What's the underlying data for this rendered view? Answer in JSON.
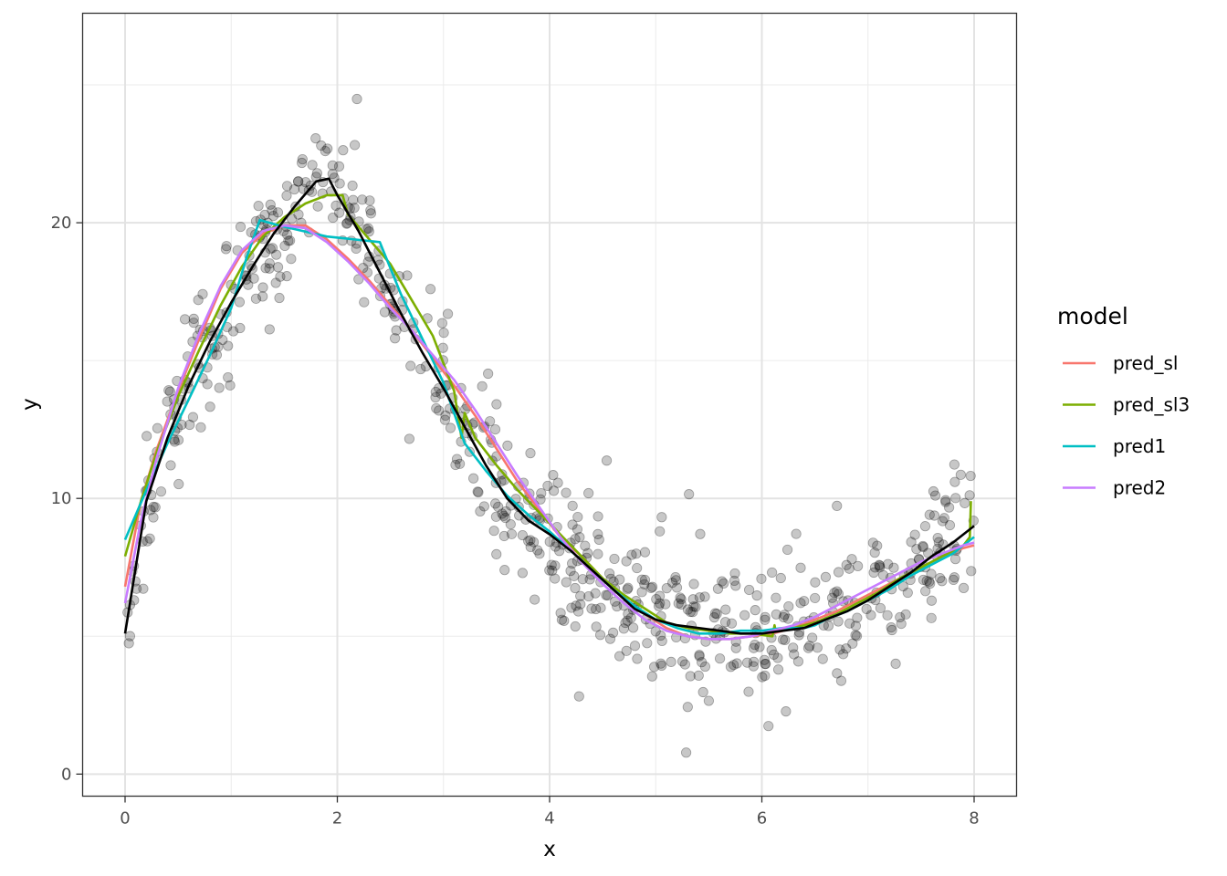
{
  "chart_data": {
    "type": "scatter",
    "title": "",
    "xlabel": "x",
    "ylabel": "y",
    "xlim": [
      -0.4,
      8.4
    ],
    "ylim": [
      -0.8,
      27.6
    ],
    "x_ticks": [
      0,
      2,
      4,
      6,
      8
    ],
    "y_ticks": [
      0,
      10,
      20
    ],
    "x_tick_labels": [
      "0",
      "2",
      "4",
      "6",
      "8"
    ],
    "y_tick_labels": [
      "0",
      "10",
      "20"
    ],
    "grid": true,
    "legend": {
      "title": "model",
      "position": "right"
    },
    "truth_line_color": "#000000",
    "truth_line": {
      "x": [
        0.0,
        0.2,
        0.4,
        0.6,
        0.8,
        1.0,
        1.2,
        1.4,
        1.6,
        1.8,
        1.92,
        2.0,
        2.2,
        2.4,
        2.6,
        2.8,
        3.0,
        3.2,
        3.4,
        3.6,
        3.8,
        4.0,
        4.2,
        4.4,
        4.6,
        4.8,
        5.0,
        5.2,
        5.4,
        5.6,
        5.8,
        6.0,
        6.2,
        6.4,
        6.6,
        6.8,
        7.0,
        7.2,
        7.4,
        7.6,
        7.8,
        8.0
      ],
      "y": [
        5.1,
        9.9,
        12.2,
        14.1,
        15.7,
        17.1,
        18.4,
        19.6,
        20.6,
        21.5,
        21.6,
        21.0,
        19.7,
        18.2,
        16.7,
        15.3,
        14.0,
        12.6,
        11.2,
        10.0,
        9.2,
        8.7,
        8.1,
        7.4,
        6.7,
        6.0,
        5.6,
        5.4,
        5.3,
        5.2,
        5.1,
        5.1,
        5.2,
        5.3,
        5.6,
        5.9,
        6.3,
        6.8,
        7.3,
        7.9,
        8.4,
        9.0
      ]
    },
    "series": [
      {
        "name": "pred_sl",
        "color": "#F8766D",
        "x": [
          0.0,
          0.15,
          0.3,
          0.5,
          0.7,
          0.9,
          1.1,
          1.3,
          1.5,
          1.7,
          1.9,
          2.1,
          2.3,
          2.5,
          2.7,
          2.9,
          3.1,
          3.3,
          3.5,
          3.7,
          3.9,
          4.1,
          4.3,
          4.5,
          4.7,
          4.9,
          5.1,
          5.3,
          5.5,
          5.7,
          5.9,
          6.1,
          6.3,
          6.5,
          6.7,
          6.9,
          7.1,
          7.3,
          7.5,
          7.7,
          7.9,
          8.0
        ],
        "y": [
          6.8,
          9.9,
          11.8,
          13.9,
          15.8,
          17.6,
          18.9,
          19.6,
          19.9,
          19.9,
          19.4,
          18.7,
          17.9,
          17.0,
          16.1,
          15.1,
          14.1,
          13.0,
          11.8,
          10.6,
          9.6,
          8.6,
          7.9,
          7.1,
          6.4,
          5.8,
          5.3,
          5.0,
          4.9,
          4.9,
          5.0,
          5.1,
          5.3,
          5.6,
          5.9,
          6.3,
          6.7,
          7.1,
          7.5,
          7.9,
          8.2,
          8.3
        ]
      },
      {
        "name": "pred_sl3",
        "color": "#7CAE00",
        "x": [
          0.0,
          0.15,
          0.3,
          0.5,
          0.7,
          0.9,
          1.1,
          1.3,
          1.5,
          1.7,
          1.9,
          2.05,
          2.1,
          2.3,
          2.5,
          2.7,
          2.9,
          3.1,
          3.17,
          3.2,
          3.3,
          3.5,
          3.7,
          3.9,
          4.1,
          4.3,
          4.5,
          4.7,
          4.9,
          5.1,
          5.3,
          5.5,
          5.7,
          5.9,
          6.1,
          6.12,
          6.13,
          6.3,
          6.5,
          6.7,
          6.9,
          7.1,
          7.3,
          7.5,
          7.7,
          7.9,
          7.96,
          7.97
        ],
        "y": [
          7.9,
          9.9,
          11.7,
          13.7,
          15.4,
          17.0,
          18.4,
          19.5,
          20.2,
          20.7,
          21.0,
          21.0,
          20.3,
          19.4,
          18.5,
          17.2,
          15.9,
          13.9,
          12.2,
          13.1,
          12.2,
          11.2,
          10.3,
          9.5,
          8.7,
          7.9,
          7.1,
          6.5,
          6.0,
          5.5,
          5.3,
          5.2,
          5.1,
          5.1,
          5.0,
          5.4,
          5.2,
          5.3,
          5.5,
          5.8,
          6.2,
          6.6,
          7.1,
          7.5,
          7.9,
          8.3,
          8.6,
          9.9
        ]
      },
      {
        "name": "pred1",
        "color": "#00BFC4",
        "x": [
          0.0,
          0.2,
          0.4,
          0.6,
          0.8,
          1.0,
          1.15,
          1.27,
          1.45,
          1.9,
          2.4,
          2.6,
          2.8,
          3.0,
          3.2,
          3.4,
          3.6,
          3.8,
          4.0,
          4.2,
          4.4,
          4.6,
          4.8,
          5.0,
          5.2,
          5.4,
          5.6,
          5.8,
          6.0,
          6.2,
          6.4,
          6.5,
          6.6,
          6.8,
          7.0,
          7.2,
          7.4,
          7.6,
          7.8,
          8.0
        ],
        "y": [
          8.5,
          10.3,
          12.0,
          13.6,
          15.2,
          16.9,
          18.8,
          20.1,
          19.9,
          19.5,
          19.3,
          17.4,
          15.8,
          14.2,
          12.0,
          11.0,
          10.1,
          9.4,
          8.8,
          8.1,
          7.4,
          6.7,
          6.1,
          5.6,
          5.3,
          5.1,
          5.1,
          5.2,
          5.2,
          5.3,
          5.3,
          5.4,
          5.6,
          5.9,
          6.3,
          6.7,
          7.2,
          7.6,
          8.0,
          8.6
        ]
      },
      {
        "name": "pred2",
        "color": "#C77CFF",
        "x": [
          0.0,
          0.15,
          0.3,
          0.5,
          0.7,
          0.9,
          1.1,
          1.3,
          1.5,
          1.7,
          1.9,
          2.1,
          2.3,
          2.5,
          2.7,
          2.9,
          3.1,
          3.3,
          3.5,
          3.7,
          3.9,
          4.1,
          4.3,
          4.5,
          4.7,
          4.9,
          5.1,
          5.3,
          5.5,
          5.7,
          5.9,
          6.1,
          6.3,
          6.5,
          6.7,
          6.9,
          7.1,
          7.3,
          7.5,
          7.7,
          7.9,
          8.0
        ],
        "y": [
          6.2,
          9.2,
          11.5,
          14.0,
          16.0,
          17.7,
          19.0,
          19.7,
          19.9,
          19.8,
          19.3,
          18.6,
          17.8,
          16.9,
          16.1,
          15.2,
          14.3,
          13.2,
          12.0,
          10.8,
          9.7,
          8.6,
          7.7,
          6.9,
          6.2,
          5.6,
          5.2,
          5.0,
          4.9,
          4.9,
          5.0,
          5.2,
          5.4,
          5.7,
          6.1,
          6.5,
          6.9,
          7.3,
          7.7,
          8.0,
          8.3,
          8.4
        ]
      }
    ]
  }
}
